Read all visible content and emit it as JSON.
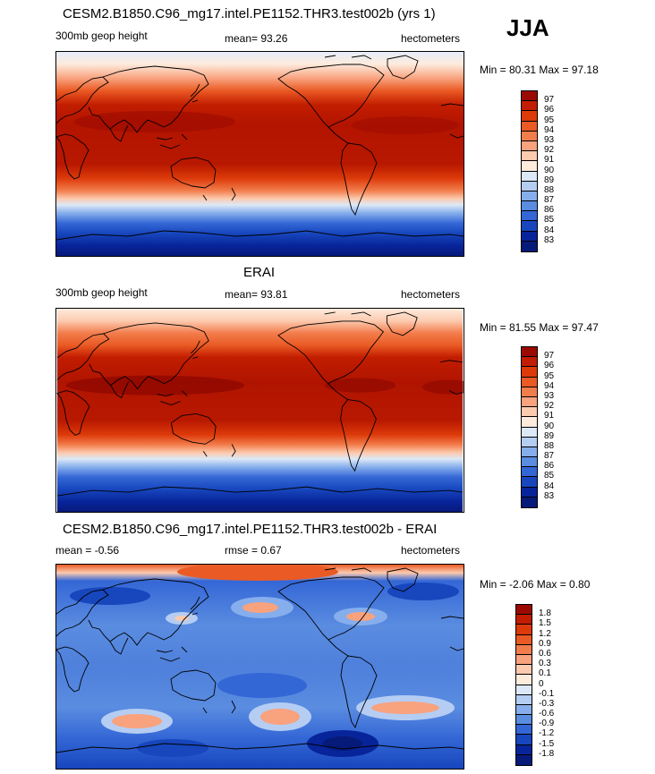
{
  "season": "JJA",
  "panels": [
    {
      "title": "CESM2.B1850.C96_mg17.intel.PE1152.THR3.test002b (yrs 1)",
      "left_label": "300mb geop height",
      "center_label": "mean=  93.26",
      "right_label": "hectometers",
      "minmax": "Min =  80.31 Max =  97.18",
      "colorbar": {
        "labels": [
          "97",
          "96",
          "95",
          "94",
          "93",
          "92",
          "91",
          "90",
          "89",
          "88",
          "87",
          "86",
          "85",
          "84",
          "83"
        ],
        "colors": [
          "#9b0a00",
          "#c21d00",
          "#dd3a0a",
          "#ea5a24",
          "#f27d4c",
          "#f8a27e",
          "#fccaaf",
          "#fdebdc",
          "#dce8f7",
          "#b5cdf3",
          "#86aeec",
          "#5a8ce0",
          "#3467d6",
          "#1746bd",
          "#08249a",
          "#061a7a"
        ]
      }
    },
    {
      "title": "ERAI",
      "left_label": "300mb geop height",
      "center_label": "mean=  93.81",
      "right_label": "hectometers",
      "minmax": "Min =  81.55 Max =  97.47",
      "colorbar": {
        "labels": [
          "97",
          "96",
          "95",
          "94",
          "93",
          "92",
          "91",
          "90",
          "89",
          "88",
          "87",
          "86",
          "85",
          "84",
          "83"
        ],
        "colors": [
          "#9b0a00",
          "#c21d00",
          "#dd3a0a",
          "#ea5a24",
          "#f27d4c",
          "#f8a27e",
          "#fccaaf",
          "#fdebdc",
          "#dce8f7",
          "#b5cdf3",
          "#86aeec",
          "#5a8ce0",
          "#3467d6",
          "#1746bd",
          "#08249a",
          "#061a7a"
        ]
      }
    },
    {
      "title": "CESM2.B1850.C96_mg17.intel.PE1152.THR3.test002b - ERAI",
      "left_label": "mean =  -0.56",
      "center_label": "rmse =   0.67",
      "right_label": "hectometers",
      "minmax": "Min =  -2.06 Max =   0.80",
      "colorbar": {
        "labels": [
          "1.8",
          "1.5",
          "1.2",
          "0.9",
          "0.6",
          "0.3",
          "0.1",
          "0",
          "-0.1",
          "-0.3",
          "-0.6",
          "-0.9",
          "-1.2",
          "-1.5",
          "-1.8"
        ],
        "colors": [
          "#9b0a00",
          "#c21d00",
          "#dd3a0a",
          "#ea5a24",
          "#f27d4c",
          "#f8a27e",
          "#fccaaf",
          "#fdebdc",
          "#dce8f7",
          "#b5cdf3",
          "#86aeec",
          "#5a8ce0",
          "#3467d6",
          "#1746bd",
          "#08249a",
          "#061a7a"
        ]
      }
    }
  ]
}
